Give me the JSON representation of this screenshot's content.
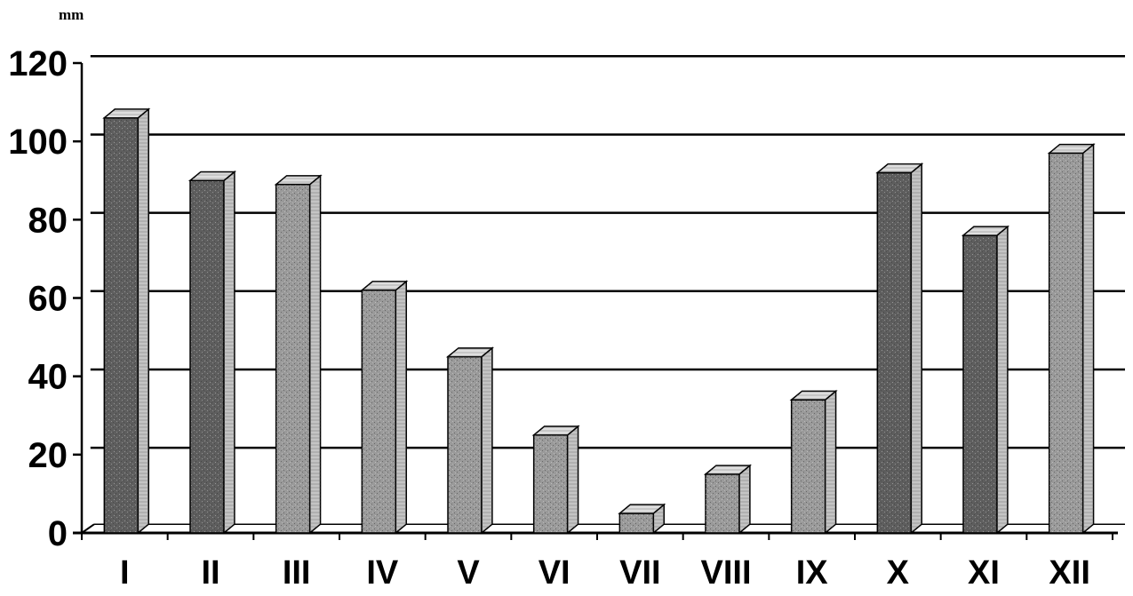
{
  "chart_data": {
    "type": "bar",
    "ylabel": "mm",
    "xlabel": "",
    "title": "",
    "categories": [
      "I",
      "II",
      "III",
      "IV",
      "V",
      "VI",
      "VII",
      "VIII",
      "IX",
      "X",
      "XI",
      "XII"
    ],
    "values": [
      106,
      90,
      89,
      62,
      45,
      25,
      5,
      15,
      34,
      92,
      76,
      97
    ],
    "ylim": [
      0,
      120
    ],
    "yticks": [
      0,
      20,
      40,
      60,
      80,
      100,
      120
    ],
    "grid": true,
    "bar_style": "3d",
    "colors": {
      "bar_front": "#9a9a9a",
      "bar_front_dark": "#5e5e5e",
      "bar_side": "#c4c4c4",
      "bar_top": "#dedede",
      "grid": "#000000",
      "axis": "#000000"
    }
  }
}
